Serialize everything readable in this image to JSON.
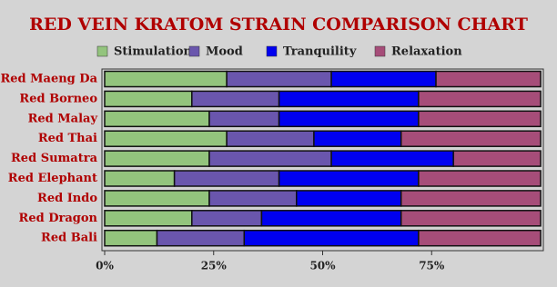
{
  "chart_data": {
    "type": "bar",
    "orientation": "horizontal",
    "stacked": true,
    "title": "RED VEIN KRATOM STRAIN COMPARISON CHART",
    "categories": [
      "Red Maeng Da",
      "Red Borneo",
      "Red Malay",
      "Red Thai",
      "Red Sumatra",
      "Red Elephant",
      "Red Indo",
      "Red Dragon",
      "Red Bali"
    ],
    "series": [
      {
        "name": "Stimulation",
        "color": "#93c47d",
        "values": [
          28,
          20,
          24,
          28,
          24,
          16,
          24,
          20,
          12
        ]
      },
      {
        "name": "Mood",
        "color": "#6a56ad",
        "values": [
          24,
          20,
          16,
          20,
          28,
          24,
          20,
          16,
          20
        ]
      },
      {
        "name": "Tranquility",
        "color": "#0000f0",
        "values": [
          24,
          32,
          32,
          20,
          28,
          32,
          24,
          32,
          40
        ]
      },
      {
        "name": "Relaxation",
        "color": "#a64d79",
        "values": [
          24,
          28,
          28,
          32,
          20,
          28,
          32,
          32,
          28
        ]
      }
    ],
    "xlim": [
      0,
      100
    ],
    "xticks": [
      {
        "value": 0,
        "label": "0%"
      },
      {
        "value": 25,
        "label": "25%"
      },
      {
        "value": 50,
        "label": "50%"
      },
      {
        "value": 75,
        "label": "75%"
      }
    ]
  }
}
